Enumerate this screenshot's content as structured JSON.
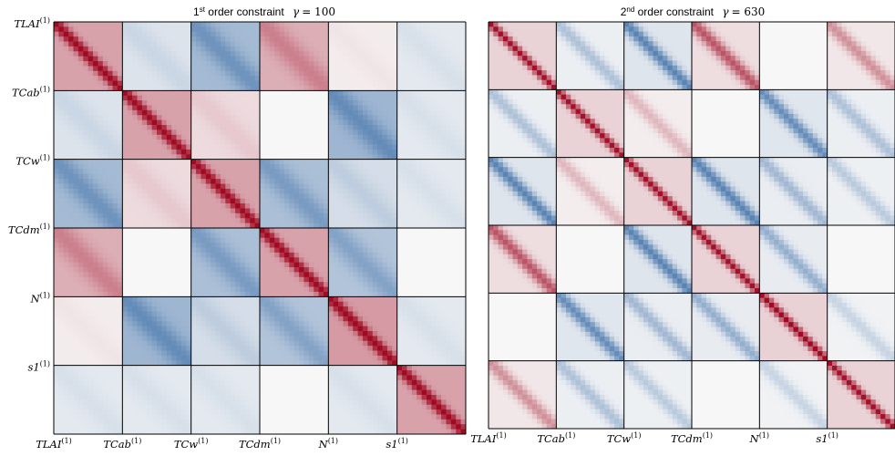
{
  "chart_data": [
    {
      "type": "heatmap",
      "title": {
        "ordinal": "1",
        "ordinal_suffix": "st",
        "text": " order constraint",
        "gamma_symbol": "γ",
        "gamma_value": "= 100"
      },
      "blocks": [
        "TLAI",
        "TCab",
        "TCw",
        "TCdm",
        "N",
        "s1"
      ],
      "block_superscript": "(1)",
      "grid": true,
      "colormap": "RdBu (blue = negative, white = 0, red = positive)",
      "block_pattern": "diag_and_block_mean",
      "diag_sharpness": 0.08,
      "block_values": [
        [
          0.85,
          -0.15,
          -0.55,
          0.45,
          0.05,
          -0.1
        ],
        [
          -0.15,
          0.85,
          0.15,
          0.0,
          -0.6,
          -0.1
        ],
        [
          -0.55,
          0.15,
          0.85,
          -0.5,
          -0.2,
          -0.1
        ],
        [
          0.45,
          0.0,
          -0.5,
          0.85,
          -0.45,
          0.0
        ],
        [
          0.05,
          -0.6,
          -0.2,
          -0.45,
          0.95,
          -0.1
        ],
        [
          -0.1,
          -0.1,
          -0.1,
          0.0,
          -0.1,
          0.85
        ]
      ]
    },
    {
      "type": "heatmap",
      "title": {
        "ordinal": "2",
        "ordinal_suffix": "nd",
        "text": " order constraint",
        "gamma_symbol": "γ",
        "gamma_value": "= 630"
      },
      "blocks": [
        "TLAI",
        "TCab",
        "TCw",
        "TCdm",
        "N",
        "s1"
      ],
      "block_superscript": "(1)",
      "grid": true,
      "colormap": "RdBu (blue = negative, white = 0, red = positive)",
      "block_pattern": "diag_band",
      "diag_sharpness": 0.06,
      "block_values": [
        [
          0.9,
          -0.25,
          -0.6,
          0.6,
          0.0,
          0.35
        ],
        [
          -0.25,
          0.9,
          0.2,
          0.0,
          -0.55,
          -0.25
        ],
        [
          -0.6,
          0.2,
          0.9,
          -0.6,
          -0.3,
          -0.2
        ],
        [
          0.6,
          0.0,
          -0.6,
          0.9,
          -0.35,
          0.0
        ],
        [
          0.0,
          -0.55,
          -0.3,
          -0.35,
          0.95,
          -0.15
        ],
        [
          0.35,
          -0.25,
          -0.2,
          0.0,
          -0.15,
          0.9
        ]
      ]
    }
  ]
}
